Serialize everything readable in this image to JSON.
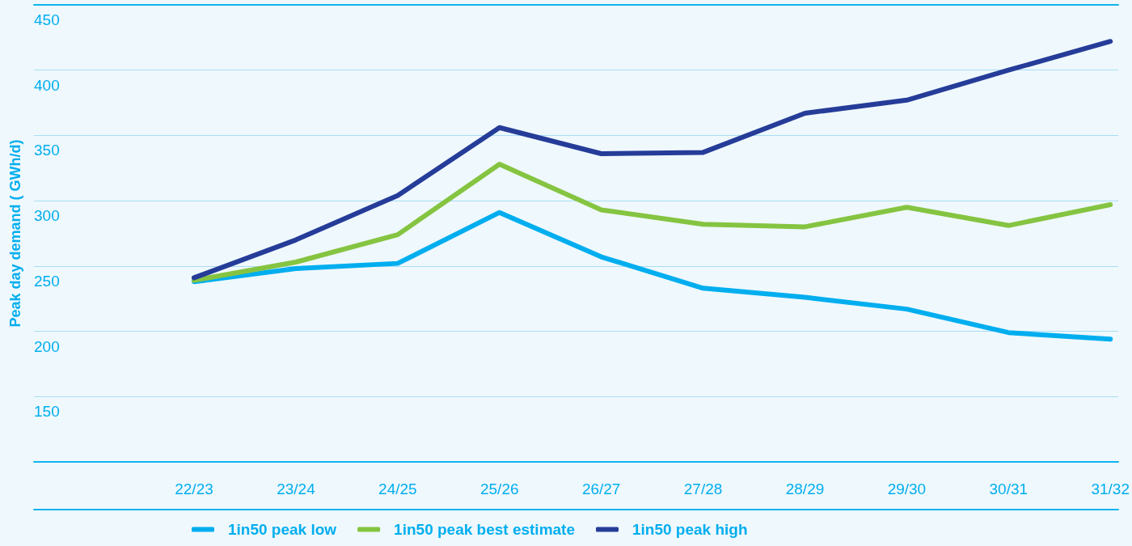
{
  "chart_data": {
    "type": "line",
    "ylabel": "Peak day demand ( GWh/d)",
    "categories": [
      "22/23",
      "23/24",
      "24/25",
      "25/26",
      "26/27",
      "27/28",
      "28/29",
      "29/30",
      "30/31",
      "31/32"
    ],
    "series": [
      {
        "name": "1in50 peak low",
        "color": "#00aeef",
        "values": [
          238,
          248,
          252,
          291,
          257,
          233,
          226,
          217,
          199,
          194
        ]
      },
      {
        "name": "1in50 peak best estimate",
        "color": "#85c441",
        "values": [
          239,
          253,
          274,
          328,
          293,
          282,
          280,
          295,
          281,
          297
        ]
      },
      {
        "name": "1in50 peak high",
        "color": "#253c98",
        "values": [
          241,
          270,
          304,
          356,
          336,
          337,
          367,
          377,
          400,
          422
        ]
      }
    ],
    "ylim": [
      100,
      450
    ],
    "yticks": [
      150,
      200,
      250,
      300,
      350,
      400,
      450
    ],
    "grid": "y",
    "legend": "bottom",
    "marker": "none",
    "line_style": "solid"
  }
}
